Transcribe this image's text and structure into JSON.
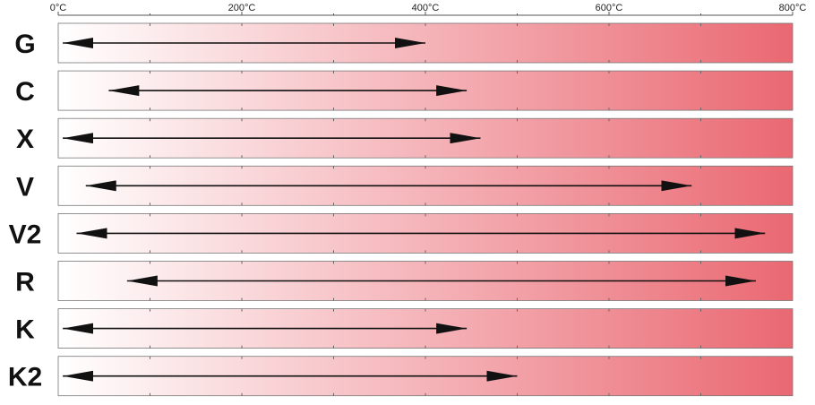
{
  "chart_data": {
    "type": "bar",
    "orientation": "horizontal-range",
    "x_unit": "°C",
    "xlim": [
      0,
      800
    ],
    "x_ticks": [
      0,
      200,
      400,
      600,
      800
    ],
    "x_tick_labels": [
      "0°C",
      "200°C",
      "400°C",
      "600°C",
      "800°C"
    ],
    "minor_tick_step": 100,
    "background_gradient": [
      "#ffffff",
      "#ea6872"
    ],
    "arrow_color": "#111111",
    "grid": true,
    "categories": [
      "G",
      "C",
      "X",
      "V",
      "V2",
      "R",
      "K",
      "K2"
    ],
    "ranges": [
      {
        "name": "G",
        "low": 5,
        "high": 400
      },
      {
        "name": "C",
        "low": 55,
        "high": 445
      },
      {
        "name": "X",
        "low": 5,
        "high": 460
      },
      {
        "name": "V",
        "low": 30,
        "high": 690
      },
      {
        "name": "V2",
        "low": 20,
        "high": 770
      },
      {
        "name": "R",
        "low": 75,
        "high": 760
      },
      {
        "name": "K",
        "low": 5,
        "high": 445
      },
      {
        "name": "K2",
        "low": 5,
        "high": 500
      }
    ]
  }
}
